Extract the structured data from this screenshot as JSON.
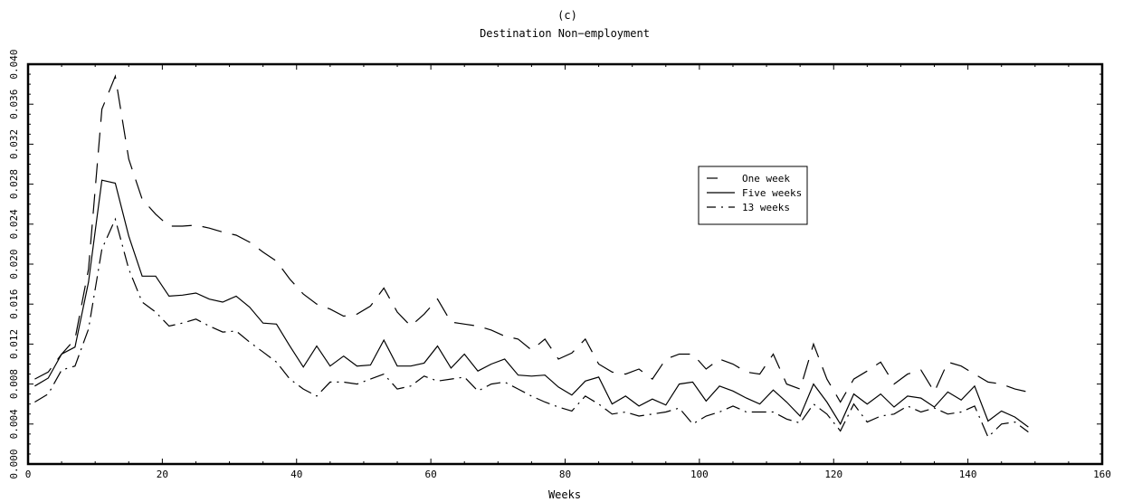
{
  "chart_data": {
    "type": "line",
    "title": "(c)",
    "subtitle": "Destination Non−employment",
    "xlabel": "Weeks",
    "ylabel": "",
    "xlim": [
      0,
      160
    ],
    "ylim": [
      0,
      0.04
    ],
    "xticks": [
      0,
      20,
      40,
      60,
      80,
      100,
      120,
      140,
      160
    ],
    "yticks": [
      "0.000",
      "0.004",
      "0.008",
      "0.012",
      "0.016",
      "0.020",
      "0.024",
      "0.028",
      "0.032",
      "0.036",
      "0.040"
    ],
    "grid": false,
    "legend_position": "upper-right-center",
    "series": [
      {
        "name": "One week",
        "style": "long-dash",
        "x": [
          1,
          3,
          5,
          7,
          9,
          11,
          13,
          15,
          17,
          19,
          21,
          23,
          25,
          27,
          29,
          31,
          33,
          35,
          37,
          39,
          41,
          43,
          45,
          47,
          49,
          51,
          53,
          55,
          57,
          59,
          61,
          63,
          65,
          67,
          69,
          71,
          73,
          75,
          77,
          79,
          81,
          83,
          85,
          87,
          89,
          91,
          93,
          95,
          97,
          99,
          101,
          103,
          105,
          107,
          109,
          111,
          113,
          115,
          117,
          119,
          121,
          123,
          125,
          127,
          129,
          131,
          133,
          135,
          137,
          139,
          141,
          143,
          145,
          147,
          149
        ],
        "values": [
          0.0085,
          0.0092,
          0.011,
          0.0125,
          0.0195,
          0.0355,
          0.0388,
          0.0305,
          0.0265,
          0.025,
          0.0238,
          0.0238,
          0.0239,
          0.0236,
          0.0232,
          0.0229,
          0.0222,
          0.0212,
          0.0203,
          0.0185,
          0.017,
          0.016,
          0.0155,
          0.0148,
          0.015,
          0.0158,
          0.0176,
          0.0152,
          0.0138,
          0.015,
          0.0165,
          0.0142,
          0.014,
          0.0138,
          0.0134,
          0.0128,
          0.0125,
          0.0114,
          0.0125,
          0.0105,
          0.0111,
          0.0125,
          0.01,
          0.0092,
          0.009,
          0.0095,
          0.0085,
          0.0105,
          0.011,
          0.011,
          0.0095,
          0.0105,
          0.01,
          0.0092,
          0.009,
          0.011,
          0.008,
          0.0075,
          0.012,
          0.0085,
          0.0062,
          0.0085,
          0.0093,
          0.0102,
          0.008,
          0.009,
          0.0094,
          0.0072,
          0.0102,
          0.0098,
          0.009,
          0.0082,
          0.008,
          0.0075,
          0.0072
        ]
      },
      {
        "name": "Five weeks",
        "style": "solid",
        "x": [
          1,
          3,
          5,
          7,
          9,
          11,
          13,
          15,
          17,
          19,
          21,
          23,
          25,
          27,
          29,
          31,
          33,
          35,
          37,
          39,
          41,
          43,
          45,
          47,
          49,
          51,
          53,
          55,
          57,
          59,
          61,
          63,
          65,
          67,
          69,
          71,
          73,
          75,
          77,
          79,
          81,
          83,
          85,
          87,
          89,
          91,
          93,
          95,
          97,
          99,
          101,
          103,
          105,
          107,
          109,
          111,
          113,
          115,
          117,
          119,
          121,
          123,
          125,
          127,
          129,
          131,
          133,
          135,
          137,
          139,
          141,
          143,
          145,
          147,
          149
        ],
        "values": [
          0.0078,
          0.0086,
          0.011,
          0.0117,
          0.0182,
          0.0284,
          0.0281,
          0.0228,
          0.0188,
          0.0188,
          0.0168,
          0.0169,
          0.0171,
          0.0165,
          0.0162,
          0.0168,
          0.0157,
          0.0141,
          0.014,
          0.0118,
          0.0097,
          0.0118,
          0.0098,
          0.0108,
          0.0098,
          0.0099,
          0.0124,
          0.0098,
          0.0098,
          0.0101,
          0.0118,
          0.0096,
          0.011,
          0.0093,
          0.01,
          0.0105,
          0.0089,
          0.0088,
          0.0089,
          0.0077,
          0.0069,
          0.0083,
          0.0087,
          0.006,
          0.0068,
          0.0058,
          0.0065,
          0.0059,
          0.008,
          0.0082,
          0.0063,
          0.0078,
          0.0073,
          0.0066,
          0.006,
          0.0074,
          0.0062,
          0.0048,
          0.008,
          0.0062,
          0.004,
          0.007,
          0.006,
          0.007,
          0.0057,
          0.0068,
          0.0066,
          0.0057,
          0.0072,
          0.0064,
          0.0078,
          0.0043,
          0.0053,
          0.0047,
          0.0037
        ]
      },
      {
        "name": "13 weeks",
        "style": "dash-dot",
        "x": [
          1,
          3,
          5,
          7,
          9,
          11,
          13,
          15,
          17,
          19,
          21,
          23,
          25,
          27,
          29,
          31,
          33,
          35,
          37,
          39,
          41,
          43,
          45,
          47,
          49,
          51,
          53,
          55,
          57,
          59,
          61,
          63,
          65,
          67,
          69,
          71,
          73,
          75,
          77,
          79,
          81,
          83,
          85,
          87,
          89,
          91,
          93,
          95,
          97,
          99,
          101,
          103,
          105,
          107,
          109,
          111,
          113,
          115,
          117,
          119,
          121,
          123,
          125,
          127,
          129,
          131,
          133,
          135,
          137,
          139,
          141,
          143,
          145,
          147,
          149
        ],
        "values": [
          0.0062,
          0.007,
          0.0094,
          0.0098,
          0.0135,
          0.0215,
          0.0245,
          0.0195,
          0.0162,
          0.0152,
          0.0138,
          0.0141,
          0.0145,
          0.0138,
          0.0132,
          0.0133,
          0.0122,
          0.0112,
          0.0102,
          0.0085,
          0.0075,
          0.0068,
          0.0082,
          0.0082,
          0.008,
          0.0085,
          0.009,
          0.0075,
          0.0078,
          0.0088,
          0.0083,
          0.0085,
          0.0087,
          0.0073,
          0.008,
          0.0082,
          0.0075,
          0.0068,
          0.0062,
          0.0057,
          0.0053,
          0.0068,
          0.006,
          0.005,
          0.0052,
          0.0048,
          0.005,
          0.0052,
          0.0056,
          0.004,
          0.0048,
          0.0052,
          0.0058,
          0.0052,
          0.0052,
          0.0052,
          0.0045,
          0.0041,
          0.006,
          0.005,
          0.0033,
          0.006,
          0.0042,
          0.0048,
          0.005,
          0.0058,
          0.0052,
          0.0056,
          0.005,
          0.0052,
          0.0058,
          0.0027,
          0.004,
          0.0042,
          0.0032
        ]
      }
    ]
  },
  "colors": {
    "line": "#000000",
    "background": "#ffffff"
  }
}
